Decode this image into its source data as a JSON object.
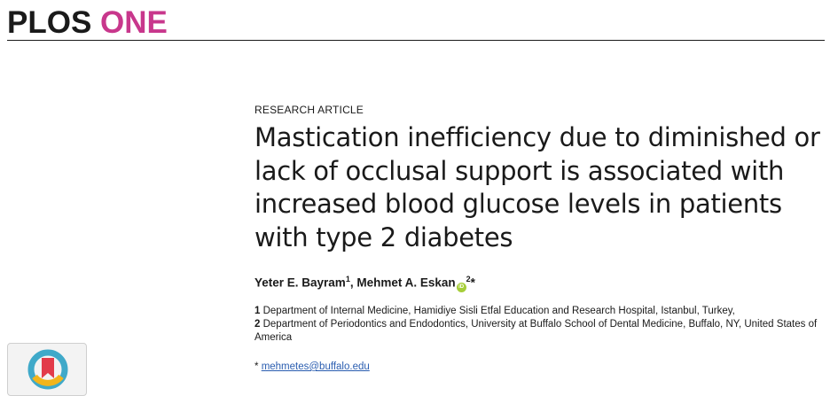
{
  "journal": {
    "name_part1": "PLOS",
    "name_part2": "ONE"
  },
  "article": {
    "type": "RESEARCH ARTICLE",
    "title": "Mastication inefficiency due to diminished or lack of occlusal support is associated with increased blood glucose levels in patients with type 2 diabetes"
  },
  "authors": [
    {
      "name": "Yeter E. Bayram",
      "sup": "1"
    },
    {
      "name": "Mehmet A. Eskan",
      "sup": "2",
      "orcid": true,
      "corresponding_mark": "*"
    }
  ],
  "affiliations": [
    {
      "num": "1",
      "text": "Department of Internal Medicine, Hamidiye Sisli Etfal Education and Research Hospital, Istanbul, Turkey,"
    },
    {
      "num": "2",
      "text": "Department of Periodontics and Endodontics, University at Buffalo School of Dental Medicine, Buffalo, NY, United States of America"
    }
  ],
  "contact": {
    "mark": "*",
    "email": "mehmetes@buffalo.edu"
  },
  "icons": {
    "orcid": "orcid-icon",
    "crossmark": "crossmark-icon"
  },
  "colors": {
    "brand_magenta": "#c8378c",
    "orcid_green": "#a6ce39",
    "link_blue": "#2a5db0"
  }
}
